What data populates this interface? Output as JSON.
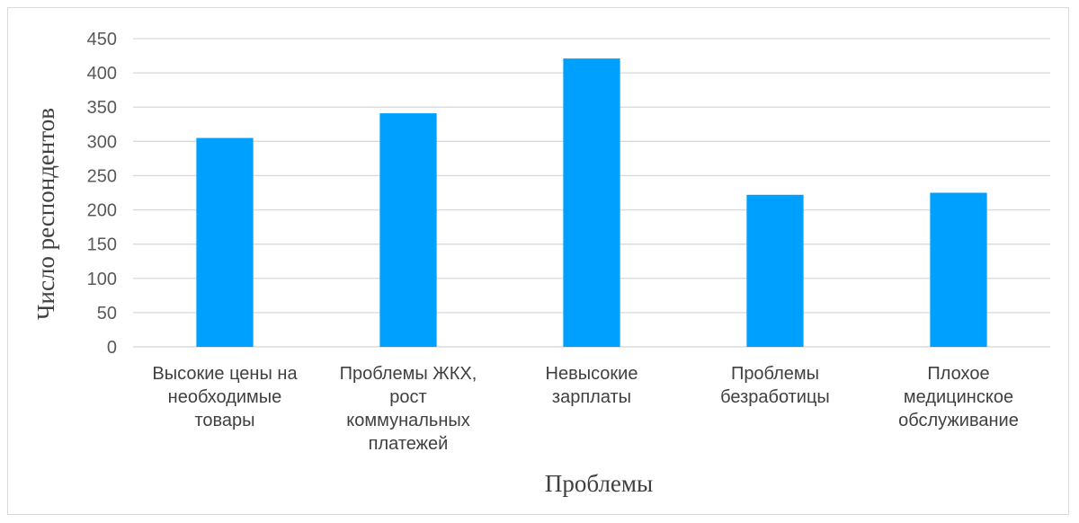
{
  "chart_data": {
    "type": "bar",
    "title": "",
    "xlabel": "Проблемы",
    "ylabel": "Число респондентов",
    "ylim": [
      0,
      450
    ],
    "yticks": [
      0,
      50,
      100,
      150,
      200,
      250,
      300,
      350,
      400,
      450
    ],
    "grid": true,
    "legend": "none",
    "bar_color": "#00A0FF",
    "categories": [
      [
        "Высокие цены на",
        "необходимые",
        "товары"
      ],
      [
        "Проблемы ЖКХ,",
        "рост",
        "коммунальных",
        "платежей"
      ],
      [
        "Невысокие",
        "зарплаты"
      ],
      [
        "Проблемы",
        "безработицы"
      ],
      [
        "Плохое",
        "медицинское",
        "обслуживание"
      ]
    ],
    "values": [
      305,
      341,
      421,
      222,
      225
    ]
  }
}
